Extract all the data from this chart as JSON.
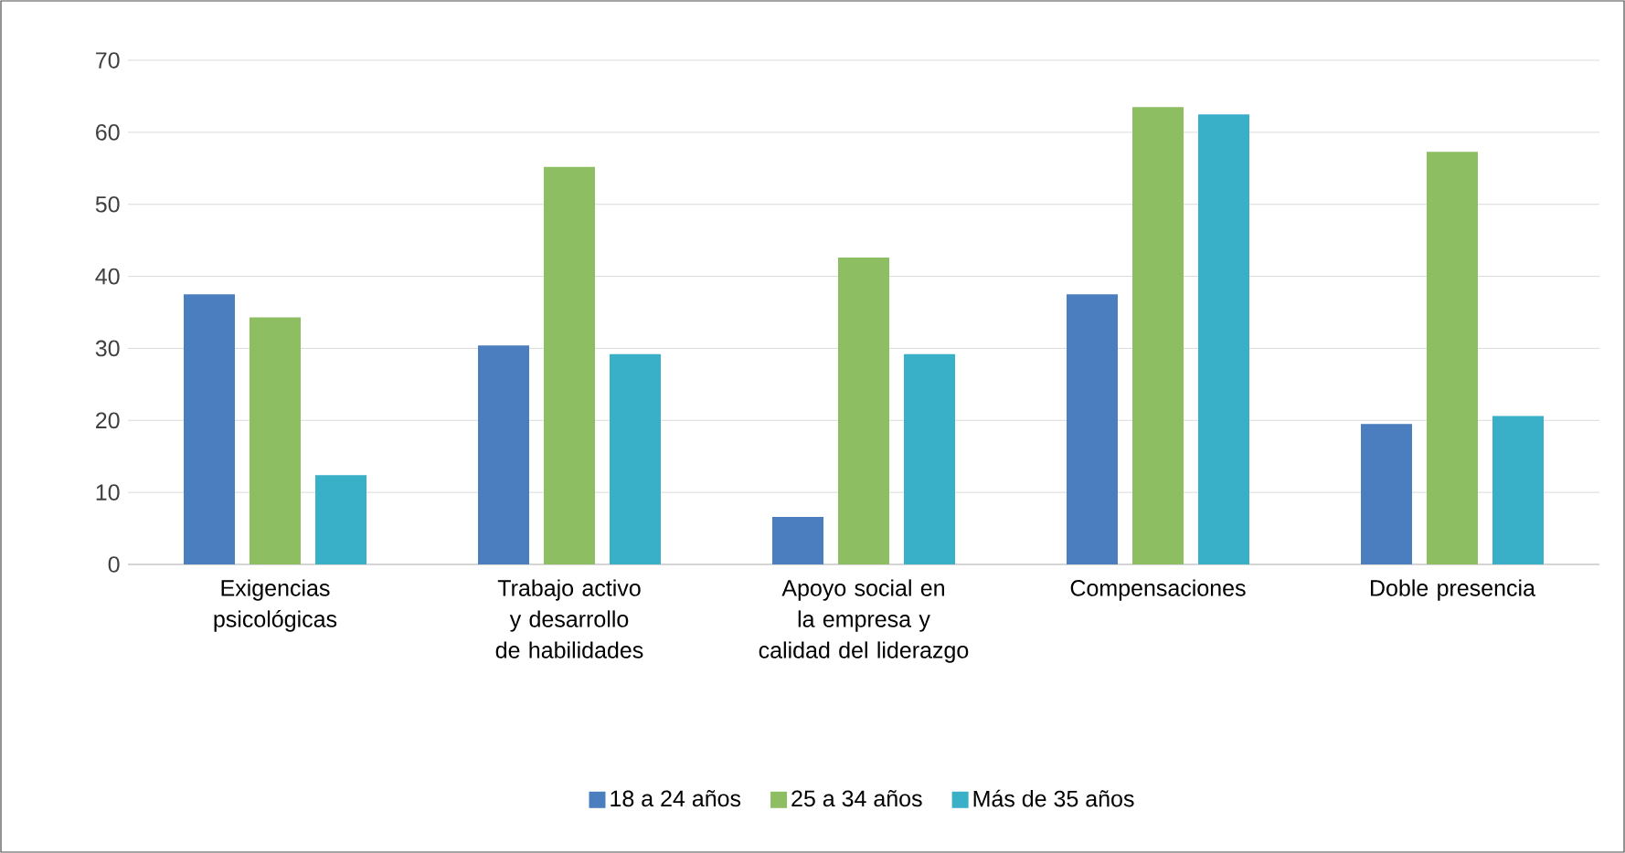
{
  "chart_data": {
    "type": "bar",
    "categories": [
      "Exigencias psicológicas",
      "Trabajo activo y desarrollo de habilidades",
      "Apoyo social en la empresa y calidad del liderazgo",
      "Compensaciones",
      "Doble presencia"
    ],
    "series": [
      {
        "name": "18 a 24 años",
        "color": "#4a7ebf",
        "values": [
          37.5,
          30.4,
          6.6,
          37.5,
          19.5
        ]
      },
      {
        "name": "25 a 34 años",
        "color": "#8ebe62",
        "values": [
          34.3,
          55.2,
          42.6,
          63.5,
          57.3
        ]
      },
      {
        "name": "Más de 35 años",
        "color": "#3aafc8",
        "values": [
          12.4,
          29.2,
          29.2,
          62.5,
          20.6
        ]
      }
    ],
    "ylim": [
      0,
      70
    ],
    "yticks": [
      0,
      10,
      20,
      30,
      40,
      50,
      60,
      70
    ],
    "grid": "y",
    "legend": "bottom"
  }
}
